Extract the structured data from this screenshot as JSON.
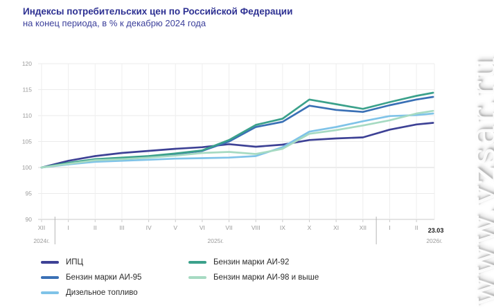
{
  "watermark": "www.vzsar.ru",
  "chart_data": {
    "type": "line",
    "title": "Индексы потребительских цен по Российской Федерации",
    "subtitle": "на конец периода, в % к декабрю 2024 года",
    "ylim": [
      90,
      120
    ],
    "y_step": 5,
    "grid": true,
    "legend_position": "bottom",
    "x_tick_labels": [
      "XII",
      "I",
      "II",
      "III",
      "IV",
      "V",
      "VI",
      "VII",
      "VIII",
      "IX",
      "X",
      "XI",
      "XII",
      "I",
      "II"
    ],
    "x": [
      0,
      1,
      2,
      3,
      4,
      5,
      6,
      7,
      8,
      9,
      10,
      11,
      12,
      13,
      14,
      14.62
    ],
    "year_labels": [
      {
        "text": "2024г.",
        "x_index": 0
      },
      {
        "text": "2025г.",
        "x_index": 6.5
      },
      {
        "text": "2026г.",
        "x_index": 14.67
      }
    ],
    "year_separators_x_index": [
      0.5,
      12.5
    ],
    "last_point_label": "23.03",
    "series": [
      {
        "name": "ИПЦ",
        "color": "#3d4195",
        "values": [
          100,
          101.3,
          102.2,
          102.8,
          103.2,
          103.6,
          103.9,
          104.5,
          104.0,
          104.4,
          105.3,
          105.6,
          105.8,
          107.3,
          108.3,
          108.6
        ]
      },
      {
        "name": "Бензин марки АИ-95",
        "color": "#3a70b5",
        "values": [
          100,
          100.8,
          101.5,
          101.8,
          102.1,
          102.6,
          103.2,
          105.0,
          107.8,
          108.8,
          111.9,
          111.1,
          110.7,
          112.0,
          113.1,
          113.6
        ]
      },
      {
        "name": "Дизельное топливо",
        "color": "#7fc3e8",
        "values": [
          100,
          100.6,
          101.1,
          101.3,
          101.5,
          101.7,
          101.8,
          101.9,
          102.2,
          103.9,
          106.9,
          107.8,
          108.9,
          109.9,
          110.1,
          110.4
        ]
      },
      {
        "name": "Бензин марки АИ-92",
        "color": "#3ba18b",
        "values": [
          100,
          100.9,
          101.6,
          101.9,
          102.2,
          102.7,
          103.3,
          105.3,
          108.2,
          109.4,
          113.1,
          112.2,
          111.3,
          112.6,
          113.8,
          114.4
        ]
      },
      {
        "name": "Бензин марки АИ-98 и выше",
        "color": "#a6dac2",
        "values": [
          100,
          100.7,
          101.4,
          101.6,
          101.9,
          102.3,
          102.8,
          103.0,
          102.6,
          103.6,
          106.5,
          107.2,
          108.1,
          109.1,
          110.4,
          110.9
        ]
      }
    ],
    "draw_order": [
      0,
      1,
      3,
      2,
      4
    ]
  },
  "legend": {
    "columns": [
      [
        0,
        1,
        2
      ],
      [
        3,
        4
      ]
    ]
  }
}
